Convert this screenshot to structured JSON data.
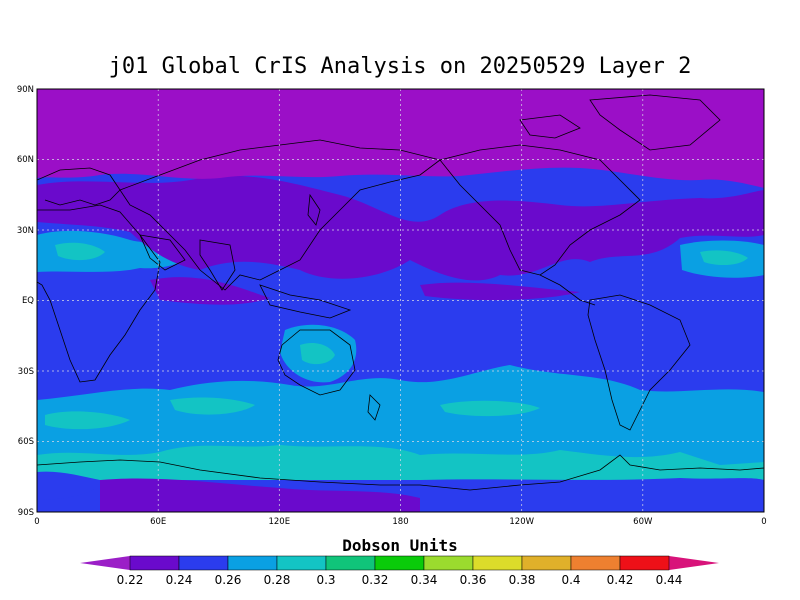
{
  "title": "j01 Global CrIS Analysis on 20250529 Layer 2",
  "units": "Dobson Units",
  "lat_labels": [
    "90N",
    "60N",
    "30N",
    "EQ",
    "30S",
    "60S",
    "90S"
  ],
  "lon_labels": [
    "0",
    "60E",
    "120E",
    "180",
    "120W",
    "60W",
    "0"
  ],
  "colorbar": {
    "labels": [
      "0.22",
      "0.24",
      "0.26",
      "0.28",
      "0.3",
      "0.32",
      "0.34",
      "0.36",
      "0.38",
      "0.4",
      "0.42",
      "0.44"
    ],
    "low_color": "#9b1fc7",
    "high_color": "#d8137a",
    "colors": [
      "#6a0acc",
      "#2b3cee",
      "#0aa0e3",
      "#13c4c4",
      "#10c47a",
      "#0acb0a",
      "#9bdb2e",
      "#dcdc2a",
      "#e0b02a",
      "#ee8030",
      "#ee1018"
    ]
  },
  "field_colors": {
    "polar_high": "#9b0fc7",
    "violet": "#6a0acc",
    "blue": "#2b3cee",
    "lightblue": "#0aa0e3",
    "cyan": "#13c4c4",
    "green": "#10c47a"
  },
  "grid": {
    "dashed": true
  }
}
